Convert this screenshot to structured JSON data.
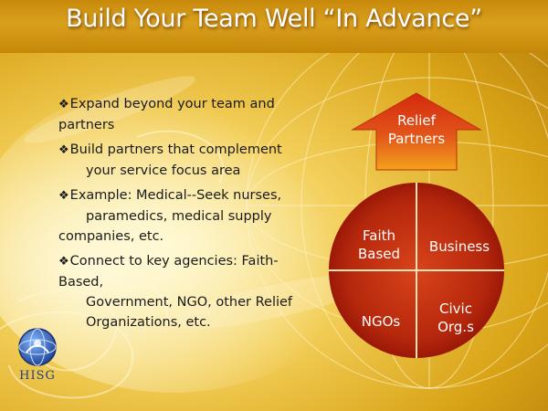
{
  "slide": {
    "title": "Build Your Team Well “In Advance”",
    "bullets": [
      {
        "lines": [
          "Expand beyond your team and",
          "partners"
        ],
        "indented_lines": []
      },
      {
        "lines": [
          "Build partners that complement"
        ],
        "indented_lines": [
          "your service focus area"
        ]
      },
      {
        "lines": [
          "Example: Medical--Seek nurses,"
        ],
        "indented_lines": [
          "paramedics, medical supply"
        ],
        "tail_lines": [
          "companies, etc."
        ]
      },
      {
        "lines": [
          "Connect to key agencies: Faith-",
          "Based,"
        ],
        "indented_lines": [
          "Government, NGO, other Relief",
          "Organizations, etc."
        ]
      }
    ],
    "bullet_icon": "diamond-bullet-icon"
  },
  "diagram": {
    "arrow": {
      "line1": "Relief",
      "line2": "Partners"
    },
    "quadrants": {
      "top_left": {
        "line1": "Faith",
        "line2": "Based"
      },
      "top_right": {
        "line1": "Business"
      },
      "bottom_left": {
        "line1": "NGOs"
      },
      "bottom_right": {
        "line1": "Civic",
        "line2": "Org.s"
      }
    },
    "colors": {
      "circle_center": "#d8431a",
      "circle_edge": "#8f1206",
      "arrow_top": "#d32a0e",
      "arrow_bottom": "#f2a21a",
      "divider": "#f7e3b5"
    }
  },
  "logo": {
    "text": "HISG",
    "icon": "globe-logo-icon"
  },
  "colors": {
    "title_bar": "#c98a0c",
    "title_text": "#ffffff",
    "body_text": "#1a1a1a",
    "logo_blue": "#1d3f8f"
  }
}
